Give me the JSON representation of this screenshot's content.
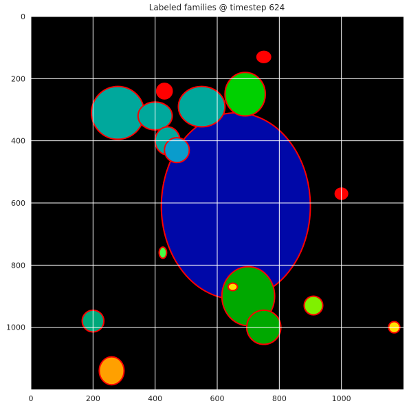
{
  "figure": {
    "title": "Labeled families @ timestep 624"
  },
  "chart_data": {
    "type": "heatmap",
    "title": "Labeled families @ timestep 624",
    "xlabel": "",
    "ylabel": "",
    "xlim": [
      0,
      1200
    ],
    "ylim": [
      1200,
      0
    ],
    "x_ticks": [
      0,
      200,
      400,
      600,
      800,
      1000
    ],
    "y_ticks": [
      0,
      200,
      400,
      600,
      800,
      1000
    ],
    "grid": true,
    "background": "#000000",
    "boundary_color": "#ff0000",
    "families": [
      {
        "color": "#0008a8",
        "blobs": [
          [
            660,
            610,
            240,
            300
          ]
        ]
      },
      {
        "color": "#00a89c",
        "blobs": [
          [
            280,
            310,
            85,
            85
          ],
          [
            400,
            320,
            55,
            45
          ],
          [
            550,
            290,
            75,
            65
          ],
          [
            440,
            400,
            40,
            45
          ]
        ]
      },
      {
        "color": "#00d000",
        "blobs": [
          [
            690,
            250,
            65,
            70
          ]
        ]
      },
      {
        "color": "#00a800",
        "blobs": [
          [
            700,
            900,
            85,
            95
          ],
          [
            750,
            1000,
            55,
            55
          ]
        ]
      },
      {
        "color": "#0a9ccc",
        "blobs": [
          [
            470,
            430,
            40,
            40
          ]
        ]
      },
      {
        "color": "#ff0000",
        "blobs": [
          [
            430,
            240,
            25,
            25
          ],
          [
            750,
            130,
            22,
            18
          ],
          [
            1000,
            570,
            20,
            18
          ]
        ]
      },
      {
        "color": "#00a87a",
        "blobs": [
          [
            200,
            980,
            35,
            35
          ]
        ]
      },
      {
        "color": "#80f000",
        "blobs": [
          [
            910,
            930,
            30,
            30
          ]
        ]
      },
      {
        "color": "#ffa000",
        "blobs": [
          [
            260,
            1140,
            40,
            45
          ]
        ]
      },
      {
        "color": "#ffe000",
        "blobs": [
          [
            1170,
            1000,
            18,
            18
          ],
          [
            650,
            870,
            15,
            12
          ]
        ]
      },
      {
        "color": "#44ff44",
        "blobs": [
          [
            425,
            760,
            12,
            18
          ]
        ]
      }
    ]
  }
}
